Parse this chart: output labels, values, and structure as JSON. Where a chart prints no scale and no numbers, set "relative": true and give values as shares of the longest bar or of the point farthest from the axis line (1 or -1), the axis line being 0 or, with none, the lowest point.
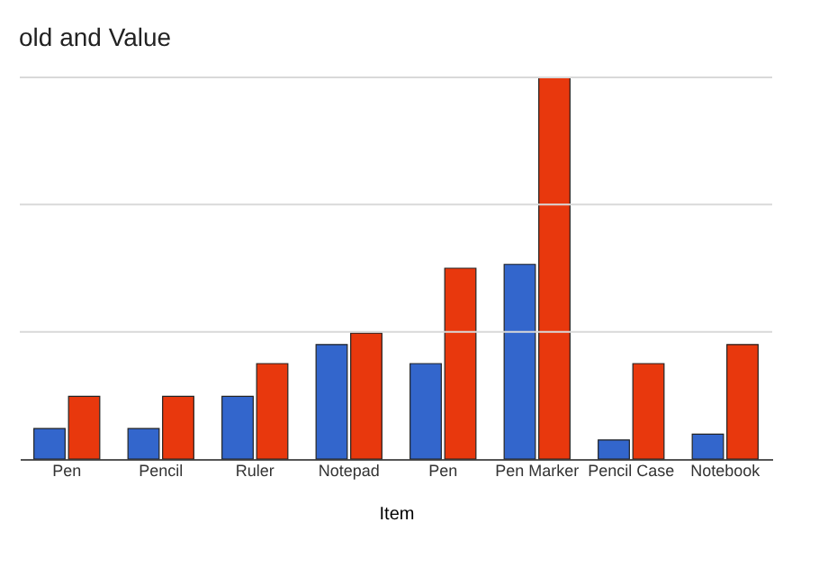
{
  "chart_data": {
    "type": "bar",
    "title": "old and Value",
    "xlabel": "Item",
    "relative": true,
    "ref_lines": [
      {
        "axis": "y",
        "value": 0.333,
        "color": "#d9d9d9"
      },
      {
        "axis": "y",
        "value": 0.667,
        "color": "#d9d9d9"
      },
      {
        "axis": "y",
        "value": 1,
        "color": "#d9d9d9"
      }
    ],
    "categories": [
      "Pen",
      "Pencil",
      "Ruler",
      "Notepad",
      "Pen",
      "Pen Marker",
      "Pencil Case",
      "Notebook"
    ],
    "series": [
      {
        "color": "#3366cc",
        "values": [
          0.08,
          0.08,
          0.164,
          0.3,
          0.25,
          0.51,
          0.05,
          0.065
        ]
      },
      {
        "color": "#e8380d",
        "values": [
          0.164,
          0.164,
          0.25,
          0.33,
          0.5,
          1,
          0.25,
          0.3
        ]
      }
    ]
  }
}
